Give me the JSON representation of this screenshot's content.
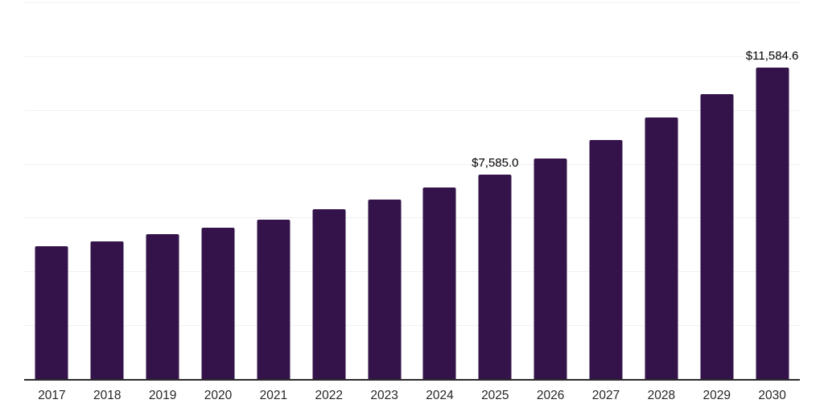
{
  "chart_data": {
    "type": "bar",
    "title": "",
    "xlabel": "",
    "ylabel": "",
    "categories": [
      "2017",
      "2018",
      "2019",
      "2020",
      "2021",
      "2022",
      "2023",
      "2024",
      "2025",
      "2026",
      "2027",
      "2028",
      "2029",
      "2030"
    ],
    "values": [
      4930,
      5130,
      5400,
      5630,
      5910,
      6320,
      6680,
      7120,
      7585.0,
      8210,
      8890,
      9710,
      10580,
      11584.6
    ],
    "data_labels": [
      {
        "category": "2025",
        "text": "$7,585.0"
      },
      {
        "category": "2030",
        "text": "$11,584.6"
      }
    ],
    "ylim": [
      0,
      14000
    ],
    "gridline_step": 2000,
    "grid": true,
    "legend_position": "none"
  },
  "style": {
    "bar_color": "#331349",
    "axis_line_color": "#2b2b2b",
    "gridline_color": "#f1f1f1",
    "tick_label_color": "#262626",
    "data_label_color": "#000000",
    "background_color": "#ffffff"
  }
}
